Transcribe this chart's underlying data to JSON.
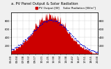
{
  "title": "a. PV Panel Output & Solar Radiation",
  "title_fontsize": 3.8,
  "background_color": "#f0f0f0",
  "plot_bg_color": "#ffffff",
  "grid_color": "#aaaaaa",
  "n_points": 144,
  "pv_color": "#cc0000",
  "pv_alpha": 1.0,
  "radiation_color": "#0000cc",
  "radiation_size": 0.8,
  "ylim_left": [
    0,
    1000
  ],
  "ylim_right": [
    0,
    1000
  ],
  "yticks_left": [
    200,
    400,
    600,
    800
  ],
  "yticks_right": [
    200,
    400,
    600,
    800
  ],
  "legend_pv": "PV Output [W]",
  "legend_rad": "Solar Radiation [W/m²]",
  "tick_fontsize": 2.8,
  "legend_fontsize": 3.0
}
